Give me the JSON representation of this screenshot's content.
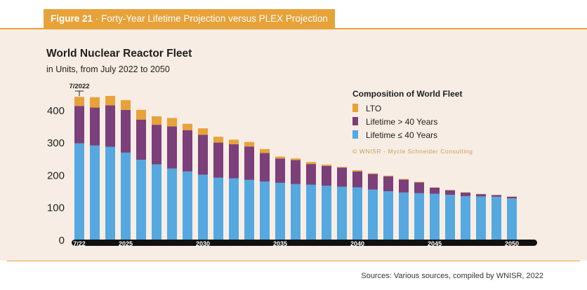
{
  "figure": {
    "label": "Figure 21",
    "separator": " · ",
    "title": "Forty-Year Lifetime Projection versus PLEX Projection"
  },
  "chart_title": "World Nuclear Reactor Fleet",
  "chart_subtitle": "in Units, from July 2022 to 2050",
  "source": "Sources: Various sources, compiled by WNISR, 2022",
  "colors": {
    "lto": "#e8a23a",
    "over40": "#7b3f7a",
    "under40": "#55a9e0",
    "panel": "#f8ede4",
    "accent": "#e8a23a"
  },
  "chart_data": {
    "type": "bar",
    "stacked": true,
    "categories": [
      "7/22",
      "2023",
      "2024",
      "2025",
      "2026",
      "2027",
      "2028",
      "2029",
      "2030",
      "2031",
      "2032",
      "2033",
      "2034",
      "2035",
      "2036",
      "2037",
      "2038",
      "2039",
      "2040",
      "2041",
      "2042",
      "2043",
      "2044",
      "2045",
      "2046",
      "2047",
      "2048",
      "2049",
      "2050"
    ],
    "series": [
      {
        "name": "Lifetime ≤ 40 Years",
        "color": "#55a9e0",
        "values": [
          297,
          290,
          286,
          268,
          246,
          232,
          219,
          210,
          200,
          191,
          189,
          184,
          179,
          175,
          171,
          169,
          166,
          163,
          161,
          154,
          149,
          145,
          143,
          141,
          138,
          134,
          133,
          132,
          127
        ]
      },
      {
        "name": "Lifetime > 40 Years",
        "color": "#7b3f7a",
        "values": [
          115,
          117,
          128,
          132,
          124,
          122,
          130,
          127,
          123,
          108,
          105,
          103,
          88,
          75,
          74,
          64,
          61,
          59,
          49,
          48,
          46,
          40,
          33,
          19,
          14,
          11,
          7,
          5,
          5
        ]
      },
      {
        "name": "LTO",
        "color": "#e8a23a",
        "values": [
          28,
          32,
          29,
          30,
          30,
          26,
          26,
          20,
          20,
          18,
          14,
          14,
          12,
          6,
          5,
          6,
          4,
          2,
          4,
          2,
          2,
          2,
          2,
          1,
          1,
          1,
          1,
          1,
          1
        ]
      }
    ],
    "tick_labels": [
      "7/22",
      "2025",
      "2030",
      "2035",
      "2040",
      "2045",
      "2050"
    ],
    "y_ticks": [
      0,
      100,
      200,
      300,
      400
    ],
    "ylim": [
      0,
      460
    ],
    "annotation": "7/2022",
    "legend": {
      "title": "Composition of World Fleet",
      "position": "top-right",
      "entries": [
        "LTO",
        "Lifetime > 40 Years",
        "Lifetime ≤ 40 Years"
      ]
    },
    "credit": "© WNISR - Mycle Schneider Consulting"
  }
}
